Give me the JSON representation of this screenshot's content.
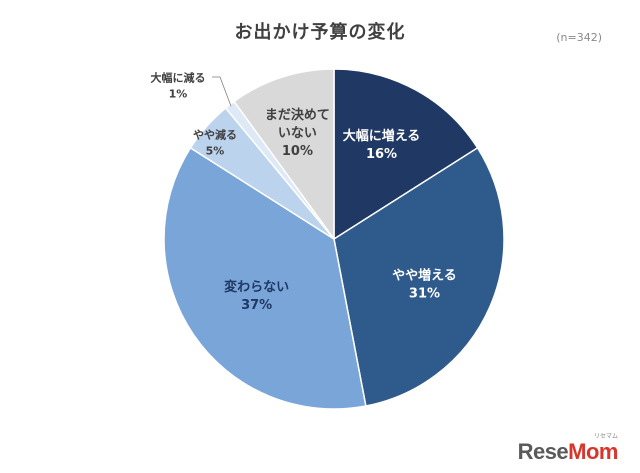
{
  "title": "お出かけ予算の変化",
  "sample_note": "(n=342)",
  "brand": {
    "logo_text": "ReseMom",
    "logo_ruby": "リセマム"
  },
  "chart_data": {
    "type": "pie",
    "title": "お出かけ予算の変化",
    "start_angle_deg": 0,
    "direction": "clockwise",
    "slices": [
      {
        "label": "大幅に増える",
        "value": 16,
        "display": "16%",
        "color": "#1f3864",
        "text_color": "#ffffff",
        "label_lines": [
          "大幅に増える"
        ]
      },
      {
        "label": "やや増える",
        "value": 31,
        "display": "31%",
        "color": "#2e5a8c",
        "text_color": "#ffffff",
        "label_lines": [
          "やや増える"
        ]
      },
      {
        "label": "変わらない",
        "value": 37,
        "display": "37%",
        "color": "#7aa5d8",
        "text_color": "#1f3864",
        "label_lines": [
          "変わらない"
        ]
      },
      {
        "label": "やや減る",
        "value": 5,
        "display": "5%",
        "color": "#bcd3ee",
        "text_color": "#404040",
        "label_lines": [
          "やや減る"
        ]
      },
      {
        "label": "大幅に減る",
        "value": 1,
        "display": "1%",
        "color": "#dde9f6",
        "text_color": "#404040",
        "label_lines": [
          "大幅に減る"
        ]
      },
      {
        "label": "まだ決めていない",
        "value": 10,
        "display": "10%",
        "color": "#d9d9d9",
        "text_color": "#404040",
        "label_lines": [
          "まだ決めて",
          "いない"
        ]
      }
    ]
  }
}
